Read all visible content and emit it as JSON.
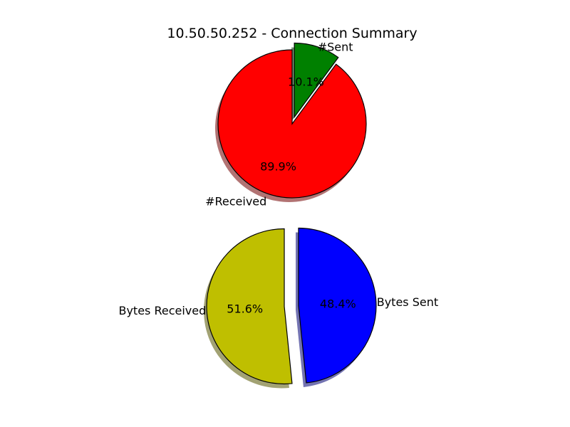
{
  "title": "10.50.50.252 - Connection Summary",
  "chart_data": [
    {
      "type": "pie",
      "title": "",
      "categories": [
        "#Received",
        "#Sent"
      ],
      "values": [
        89.9,
        10.1
      ],
      "percent_labels": [
        "89.9%",
        "10.1%"
      ],
      "colors": [
        "#ff0000",
        "#008000"
      ],
      "exploded": [
        false,
        true
      ],
      "shadow": true
    },
    {
      "type": "pie",
      "title": "",
      "categories": [
        "Bytes Received",
        "Bytes Sent"
      ],
      "values": [
        51.6,
        48.4
      ],
      "percent_labels": [
        "51.6%",
        "48.4%"
      ],
      "colors": [
        "#bfbf00",
        "#0000ff"
      ],
      "exploded": [
        true,
        true
      ],
      "shadow": true
    }
  ]
}
